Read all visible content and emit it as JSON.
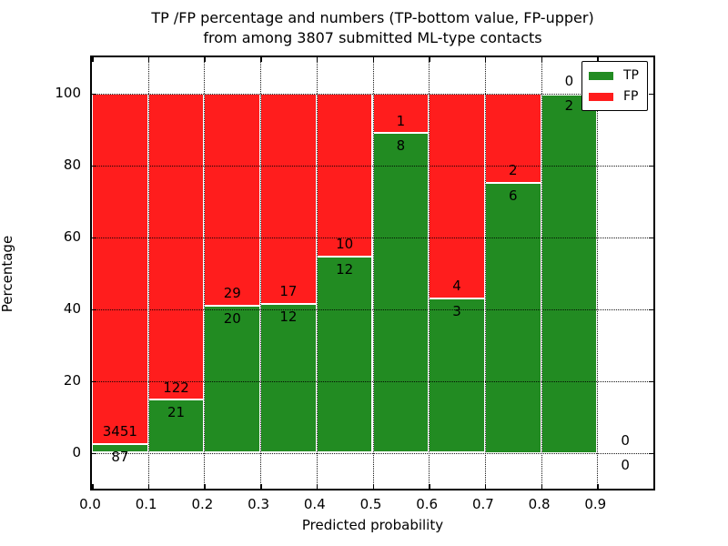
{
  "title": {
    "line1": "TP /FP percentage and numbers (TP-bottom value, FP-upper)",
    "line2": "from among 3807 submitted ML-type contacts"
  },
  "axes": {
    "xlabel": "Predicted probability",
    "ylabel": "Percentage"
  },
  "legend": {
    "tp_label": "TP",
    "fp_label": "FP"
  },
  "chart_data": {
    "type": "bar",
    "stacked": "percentage",
    "title": "TP /FP percentage and numbers (TP-bottom value, FP-upper) from among 3807 submitted ML-type contacts",
    "xlabel": "Predicted probability",
    "ylabel": "Percentage",
    "total_submitted": 3807,
    "bins": [
      {
        "x_start": 0.0,
        "x_end": 0.1,
        "tp": 87,
        "fp": 3451
      },
      {
        "x_start": 0.1,
        "x_end": 0.2,
        "tp": 21,
        "fp": 122
      },
      {
        "x_start": 0.2,
        "x_end": 0.3,
        "tp": 20,
        "fp": 29
      },
      {
        "x_start": 0.3,
        "x_end": 0.4,
        "tp": 12,
        "fp": 17
      },
      {
        "x_start": 0.4,
        "x_end": 0.5,
        "tp": 12,
        "fp": 10
      },
      {
        "x_start": 0.5,
        "x_end": 0.6,
        "tp": 8,
        "fp": 1
      },
      {
        "x_start": 0.6,
        "x_end": 0.7,
        "tp": 3,
        "fp": 4
      },
      {
        "x_start": 0.7,
        "x_end": 0.8,
        "tp": 6,
        "fp": 2
      },
      {
        "x_start": 0.8,
        "x_end": 0.9,
        "tp": 2,
        "fp": 0
      },
      {
        "x_start": 0.9,
        "x_end": 1.0,
        "tp": 0,
        "fp": 0
      }
    ],
    "xticks": [
      "0.0",
      "0.1",
      "0.2",
      "0.3",
      "0.4",
      "0.5",
      "0.6",
      "0.7",
      "0.8",
      "0.9"
    ],
    "yticks": [
      0,
      20,
      40,
      60,
      80,
      100
    ],
    "xlim": [
      0.0,
      1.0
    ],
    "ylim": [
      -10,
      110
    ],
    "grid": true,
    "legend_position": "upper right",
    "colors": {
      "tp": "#228b22",
      "fp": "#ff1d1d"
    },
    "label_offset_units": 3.5
  }
}
